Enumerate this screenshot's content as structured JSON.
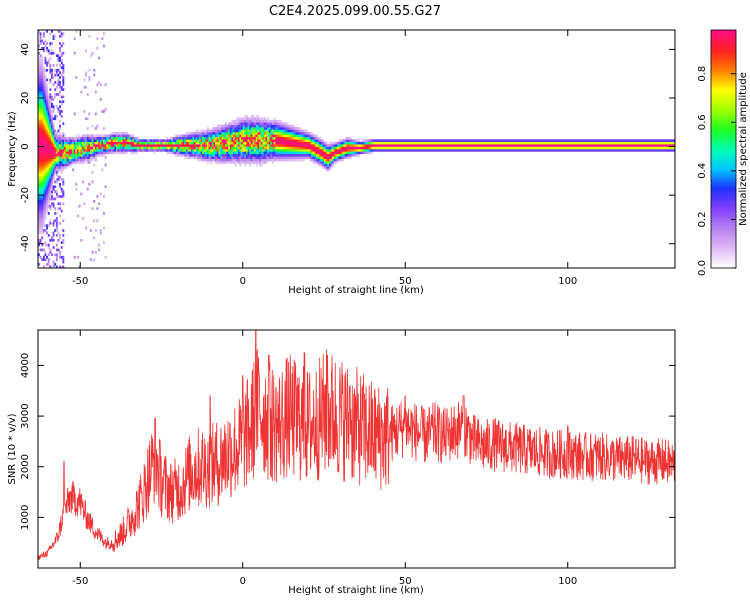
{
  "title": "C2E4.2025.099.00.55.G27",
  "chart_data": [
    {
      "type": "heatmap",
      "xlabel": "Height of straight line (km)",
      "ylabel": "Frequency (Hz)",
      "xlim": [
        -63,
        133
      ],
      "ylim": [
        -50,
        48
      ],
      "xticks": [
        -50,
        0,
        50,
        100
      ],
      "xtick_labels": [
        "-50",
        "0",
        "50",
        "100"
      ],
      "yticks": [
        -40,
        -20,
        0,
        20,
        40
      ],
      "ytick_labels": [
        "-40",
        "-20",
        "0",
        "20",
        "40"
      ],
      "colorbar": {
        "label": "Normalized spectral amplitude",
        "range": [
          0,
          0.98
        ],
        "ticks": [
          0.0,
          0.2,
          0.4,
          0.6,
          0.8
        ],
        "tick_labels": [
          "0.0",
          "0.2",
          "0.4",
          "0.6",
          "0.8"
        ],
        "colors": [
          "#ffffff",
          "#ddb8f5",
          "#b57ff0",
          "#8040ff",
          "#2030ff",
          "#00c8ff",
          "#00ffb0",
          "#20ff20",
          "#a0ff00",
          "#ffff00",
          "#ff8000",
          "#ff2020",
          "#ff1080"
        ]
      },
      "ridge": {
        "x": [
          -62,
          -58,
          -55,
          -52,
          -48,
          -44,
          -40,
          -36,
          -32,
          -28,
          -24,
          -20,
          -15,
          -10,
          -5,
          0,
          5,
          10,
          15,
          20,
          24,
          26,
          28,
          32,
          36,
          40,
          45,
          50,
          60,
          70,
          80,
          90,
          100,
          110,
          120,
          133
        ],
        "y": [
          0,
          -3,
          -3,
          -2,
          -1,
          0,
          1,
          1,
          0,
          0,
          0,
          0,
          0,
          0,
          1,
          2,
          2,
          2,
          1,
          0,
          -3,
          -5,
          -3,
          -1,
          -1,
          0,
          0,
          0,
          0,
          0,
          0,
          0,
          0,
          0,
          0,
          0
        ],
        "halfwidth": [
          25,
          6,
          5,
          4,
          4,
          3,
          3,
          3,
          2,
          2,
          2,
          3,
          4,
          5,
          6,
          7,
          7,
          6,
          5,
          4,
          4,
          4,
          3,
          3,
          2,
          2,
          2,
          2,
          2,
          2,
          2,
          2,
          2,
          2,
          2,
          2
        ]
      }
    },
    {
      "type": "line",
      "xlabel": "Height of straight line (km)",
      "ylabel": "SNR (10 * v/v)",
      "xlim": [
        -63,
        133
      ],
      "ylim": [
        0,
        4700
      ],
      "xticks": [
        -50,
        0,
        50,
        100
      ],
      "xtick_labels": [
        "-50",
        "0",
        "50",
        "100"
      ],
      "yticks": [
        1000,
        2000,
        3000,
        4000
      ],
      "ytick_labels": [
        "1000",
        "2000",
        "3000",
        "4000"
      ],
      "color": "#ee3333",
      "envelope": {
        "x": [
          -63,
          -60,
          -57,
          -55,
          -53,
          -50,
          -48,
          -45,
          -42,
          -40,
          -37,
          -34,
          -31,
          -29,
          -27,
          -25,
          -22,
          -19,
          -16,
          -13,
          -10,
          -7,
          -4,
          -1,
          2,
          5,
          8,
          11,
          14,
          17,
          20,
          23,
          26,
          29,
          32,
          35,
          38,
          41,
          44,
          47,
          50,
          53,
          56,
          59,
          62,
          65,
          68,
          71,
          74,
          77,
          80,
          85,
          90,
          95,
          100,
          105,
          110,
          115,
          120,
          125,
          130,
          133
        ],
        "y": [
          200,
          300,
          600,
          1100,
          1400,
          1300,
          1000,
          700,
          500,
          500,
          700,
          1000,
          1400,
          1800,
          2200,
          1700,
          1500,
          1600,
          1900,
          2000,
          2000,
          2100,
          2300,
          2400,
          2700,
          3200,
          2900,
          2800,
          3000,
          2900,
          2800,
          2900,
          3100,
          3000,
          2900,
          2800,
          2700,
          2600,
          2600,
          2700,
          2800,
          2700,
          2600,
          2700,
          2600,
          2700,
          2800,
          2500,
          2400,
          2450,
          2400,
          2350,
          2300,
          2250,
          2250,
          2200,
          2200,
          2150,
          2150,
          2100,
          2100,
          2050
        ]
      },
      "spikes": [
        {
          "x": -55,
          "y": 2100
        },
        {
          "x": -27,
          "y": 2950
        },
        {
          "x": -10,
          "y": 3400
        },
        {
          "x": 0,
          "y": 3800
        },
        {
          "x": 4,
          "y": 4700
        },
        {
          "x": 8,
          "y": 4200
        },
        {
          "x": 19,
          "y": 4250
        },
        {
          "x": 26,
          "y": 4200
        },
        {
          "x": 33,
          "y": 3600
        },
        {
          "x": 50,
          "y": 3400
        },
        {
          "x": 68,
          "y": 3400
        },
        {
          "x": 100,
          "y": 2800
        }
      ]
    }
  ]
}
